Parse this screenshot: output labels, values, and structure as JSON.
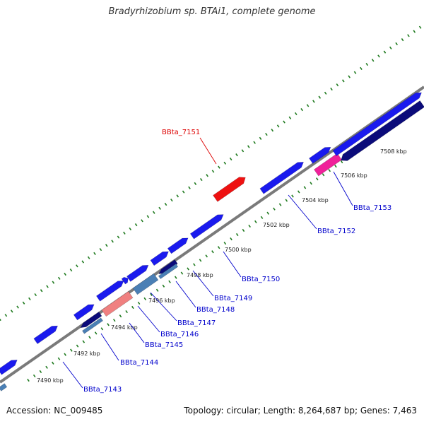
{
  "title": "Bradyrhizobium sp. BTAi1, complete genome",
  "footer": {
    "accession": "Accession: NC_009485",
    "summary": "Topology: circular; Length: 8,264,687 bp; Genes: 7,463"
  },
  "colors": {
    "backbone": "#7a7a7a",
    "tick": "#1f7a1f",
    "gene_forward": "#1a1aee",
    "gene_reverse": "#0b0b7a",
    "gene_highlight": "#ee1111",
    "gene_pink": "#f0219a",
    "gene_salmon": "#f08080",
    "gene_steel": "#4a7fb5",
    "label_default": "#0000cc",
    "label_highlight": "#dd0000"
  },
  "ticks": [
    {
      "label": "7490 kbp"
    },
    {
      "label": "7492 kbp"
    },
    {
      "label": "7494 kbp"
    },
    {
      "label": "7496 kbp"
    },
    {
      "label": "7498 kbp"
    },
    {
      "label": "7500 kbp"
    },
    {
      "label": "7502 kbp"
    },
    {
      "label": "7504 kbp"
    },
    {
      "label": "7506 kbp"
    },
    {
      "label": "7508 kbp"
    }
  ],
  "gene_labels": [
    {
      "name": "BBta_7143",
      "highlight": false
    },
    {
      "name": "BBta_7144",
      "highlight": false
    },
    {
      "name": "BBta_7145",
      "highlight": false
    },
    {
      "name": "BBta_7146",
      "highlight": false
    },
    {
      "name": "BBta_7147",
      "highlight": false
    },
    {
      "name": "BBta_7148",
      "highlight": false
    },
    {
      "name": "BBta_7149",
      "highlight": false
    },
    {
      "name": "BBta_7150",
      "highlight": false
    },
    {
      "name": "BBta_7151",
      "highlight": true
    },
    {
      "name": "BBta_7152",
      "highlight": false
    },
    {
      "name": "BBta_7153",
      "highlight": false
    }
  ]
}
